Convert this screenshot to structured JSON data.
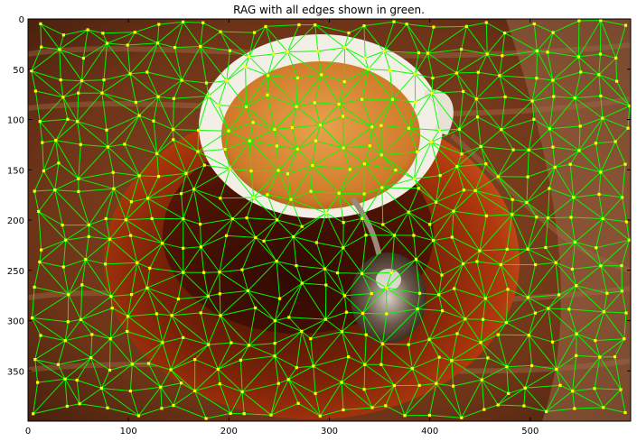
{
  "figure": {
    "title": "RAG with all edges shown in green."
  },
  "plot": {
    "x_ticks": [
      "0",
      "100",
      "200",
      "300",
      "400",
      "500"
    ],
    "y_ticks": [
      "0",
      "50",
      "100",
      "150",
      "200",
      "250",
      "300",
      "350"
    ],
    "xlim": [
      0,
      600
    ],
    "ylim": [
      400,
      0
    ],
    "image_subject": "coffee-cup-on-saucer-with-spoon",
    "edge_color": "#00ff00",
    "node_color": "#ffff00"
  }
}
